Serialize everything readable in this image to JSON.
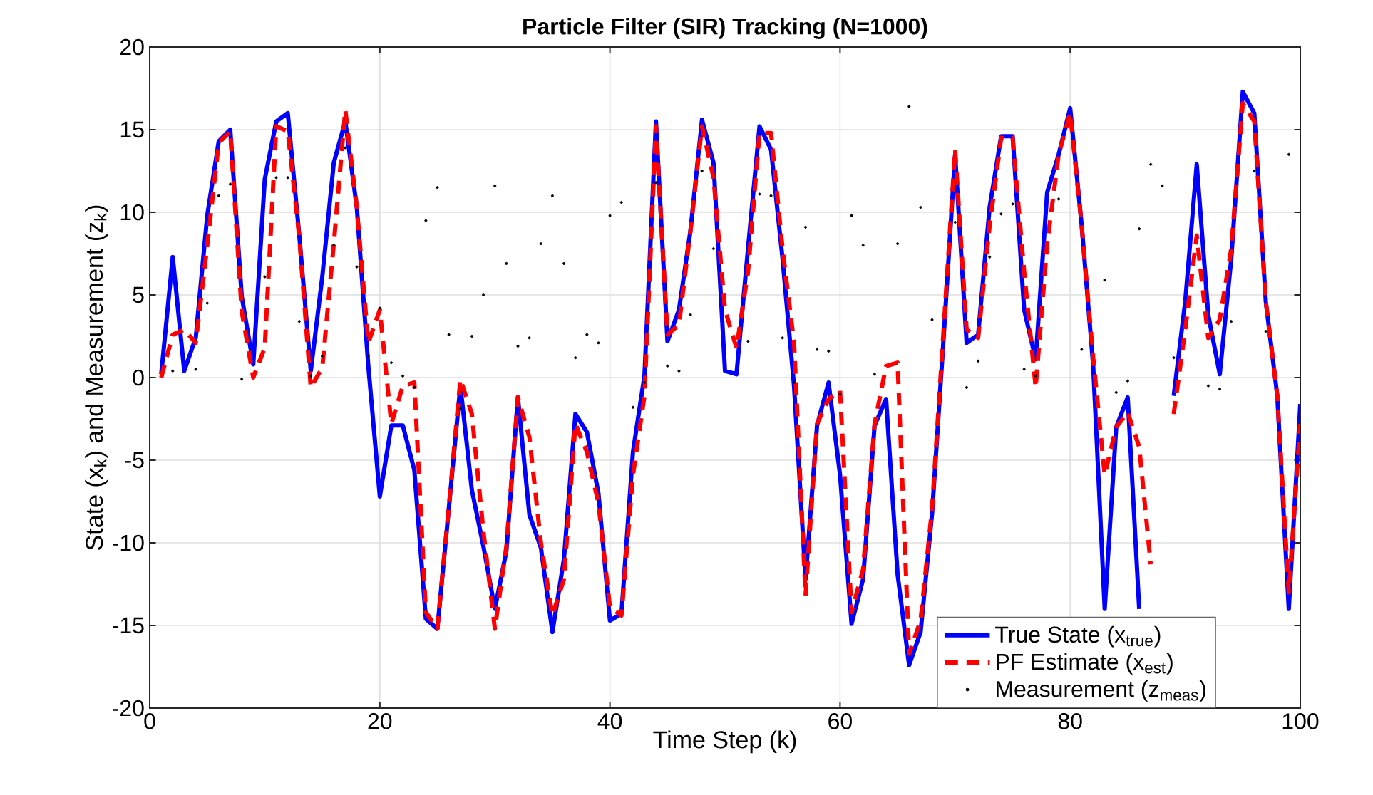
{
  "chart_data": {
    "type": "line",
    "title": "Particle Filter (SIR) Tracking (N=1000)",
    "xlabel": "Time Step (k)",
    "ylabel": "State (x$_{k}$) and Measurement (z$_{k}$)",
    "x": [
      1,
      2,
      3,
      4,
      5,
      6,
      7,
      8,
      9,
      10,
      11,
      12,
      13,
      14,
      15,
      16,
      17,
      18,
      19,
      20,
      21,
      22,
      23,
      24,
      25,
      26,
      27,
      28,
      29,
      30,
      31,
      32,
      33,
      34,
      35,
      36,
      37,
      38,
      39,
      40,
      41,
      42,
      43,
      44,
      45,
      46,
      47,
      48,
      49,
      50,
      51,
      52,
      53,
      54,
      55,
      56,
      57,
      58,
      59,
      60,
      61,
      62,
      63,
      64,
      65,
      66,
      67,
      68,
      69,
      70,
      71,
      72,
      73,
      74,
      75,
      76,
      77,
      78,
      79,
      80,
      81,
      82,
      83,
      84,
      85,
      86,
      87,
      88,
      89,
      90,
      91,
      92,
      93,
      94,
      95,
      96,
      97,
      98,
      99,
      100
    ],
    "series": [
      {
        "name": "True State (x$_{true}$)",
        "color": "#0000ff",
        "line_style": "solid",
        "values": [
          0.2,
          7.3,
          0.4,
          2.4,
          9.8,
          14.3,
          15.0,
          4.9,
          0.8,
          12.0,
          15.5,
          16.0,
          8.6,
          0.4,
          6.1,
          13.0,
          15.5,
          10.3,
          0.7,
          -7.2,
          -2.9,
          -2.9,
          -5.6,
          -14.6,
          -15.2,
          -7.9,
          -0.5,
          -6.8,
          -10.2,
          -14.0,
          -10.5,
          -1.2,
          -8.3,
          -10.3,
          -15.4,
          -11.0,
          -2.2,
          -3.3,
          -7.0,
          -14.7,
          -14.3,
          -4.5,
          0.1,
          15.5,
          2.2,
          4.1,
          8.9,
          15.6,
          13.0,
          0.4,
          0.2,
          7.8,
          15.2,
          13.8,
          7.2,
          -0.5,
          -12.2,
          -2.9,
          -0.3,
          -5.9,
          -14.9,
          -12.2,
          -2.9,
          -1.3,
          -11.9,
          -17.4,
          -15.4,
          -8.2,
          2.4,
          13.5,
          2.1,
          2.6,
          10.3,
          14.6,
          14.6,
          4.1,
          1.1,
          11.2,
          13.5,
          16.3,
          9.2,
          0.7,
          -14.0,
          -3.0,
          -1.2,
          -14.0,
          null,
          null,
          -1.1,
          4.6,
          12.9,
          3.8,
          0.2,
          7.2,
          17.3,
          16.0,
          4.6,
          -1.1,
          -14.0,
          -1.6
        ]
      },
      {
        "name": "PF Estimate (x$_{est}$)",
        "color": "#ff0000",
        "line_style": "dashed",
        "values": [
          0.0,
          2.6,
          2.9,
          2.1,
          8.0,
          14.2,
          14.9,
          4.0,
          0.0,
          1.8,
          15.2,
          14.9,
          8.5,
          -0.6,
          0.6,
          8.1,
          16.2,
          10.3,
          2.1,
          4.1,
          -2.8,
          -0.5,
          -0.3,
          -14.2,
          -15.2,
          -7.8,
          -0.1,
          -2.2,
          -9.3,
          -15.2,
          -10.2,
          -1.2,
          -3.6,
          -10.0,
          -14.4,
          -12.2,
          -2.8,
          -4.5,
          -7.6,
          -13.9,
          -14.4,
          -5.9,
          -1.1,
          15.2,
          2.6,
          3.2,
          8.9,
          15.2,
          12.1,
          4.1,
          1.8,
          6.4,
          14.8,
          14.8,
          7.8,
          2.1,
          -13.2,
          -2.8,
          -1.3,
          -0.8,
          -14.2,
          -11.6,
          -2.8,
          0.7,
          0.9,
          -16.7,
          -14.7,
          -7.9,
          2.9,
          13.8,
          2.9,
          2.4,
          9.2,
          14.5,
          14.5,
          6.4,
          -0.6,
          8.1,
          13.5,
          16.0,
          9.2,
          1.2,
          -5.9,
          -3.0,
          -2.1,
          -4.2,
          -11.3,
          null,
          -2.2,
          2.9,
          8.6,
          2.4,
          3.5,
          7.8,
          16.6,
          15.5,
          4.6,
          -1.1,
          -13.0,
          -2.8
        ]
      },
      {
        "name": "Measurement (z$_{meas}$)",
        "type": "scatter",
        "color": "#000000",
        "values": [
          null,
          0.4,
          null,
          0.5,
          4.5,
          11.0,
          11.7,
          -0.1,
          null,
          6.1,
          12.1,
          12.1,
          3.4,
          0.1,
          1.3,
          8.0,
          13.9,
          6.7,
          1.3,
          4.2,
          0.9,
          0.1,
          -0.6,
          9.5,
          11.5,
          2.6,
          -1.9,
          2.5,
          5.0,
          11.6,
          6.9,
          1.9,
          2.4,
          8.1,
          11.0,
          6.9,
          1.2,
          2.6,
          2.1,
          9.8,
          10.6,
          -1.8,
          -0.3,
          11.8,
          0.7,
          0.4,
          3.8,
          12.5,
          7.8,
          null,
          null,
          2.2,
          11.1,
          11.0,
          2.4,
          -0.3,
          9.1,
          1.7,
          1.6,
          -1.0,
          9.8,
          8.0,
          0.2,
          null,
          8.1,
          16.4,
          10.3,
          3.5,
          null,
          9.4,
          -0.6,
          1.0,
          7.3,
          9.9,
          10.5,
          0.5,
          0.1,
          null,
          10.8,
          null,
          1.7,
          null,
          5.9,
          -0.9,
          -0.2,
          9.0,
          12.9,
          11.6,
          1.2,
          null,
          null,
          -0.5,
          -0.7,
          3.4,
          null,
          12.5,
          2.8,
          null,
          13.5,
          null
        ]
      }
    ],
    "xlim": [
      0,
      100
    ],
    "xticks": [
      0,
      20,
      40,
      60,
      80,
      100
    ],
    "ylim": [
      -20,
      20
    ],
    "yticks": [
      -20,
      -15,
      -10,
      -5,
      0,
      5,
      10,
      15,
      20
    ],
    "grid": true,
    "legend": "bottom right"
  }
}
